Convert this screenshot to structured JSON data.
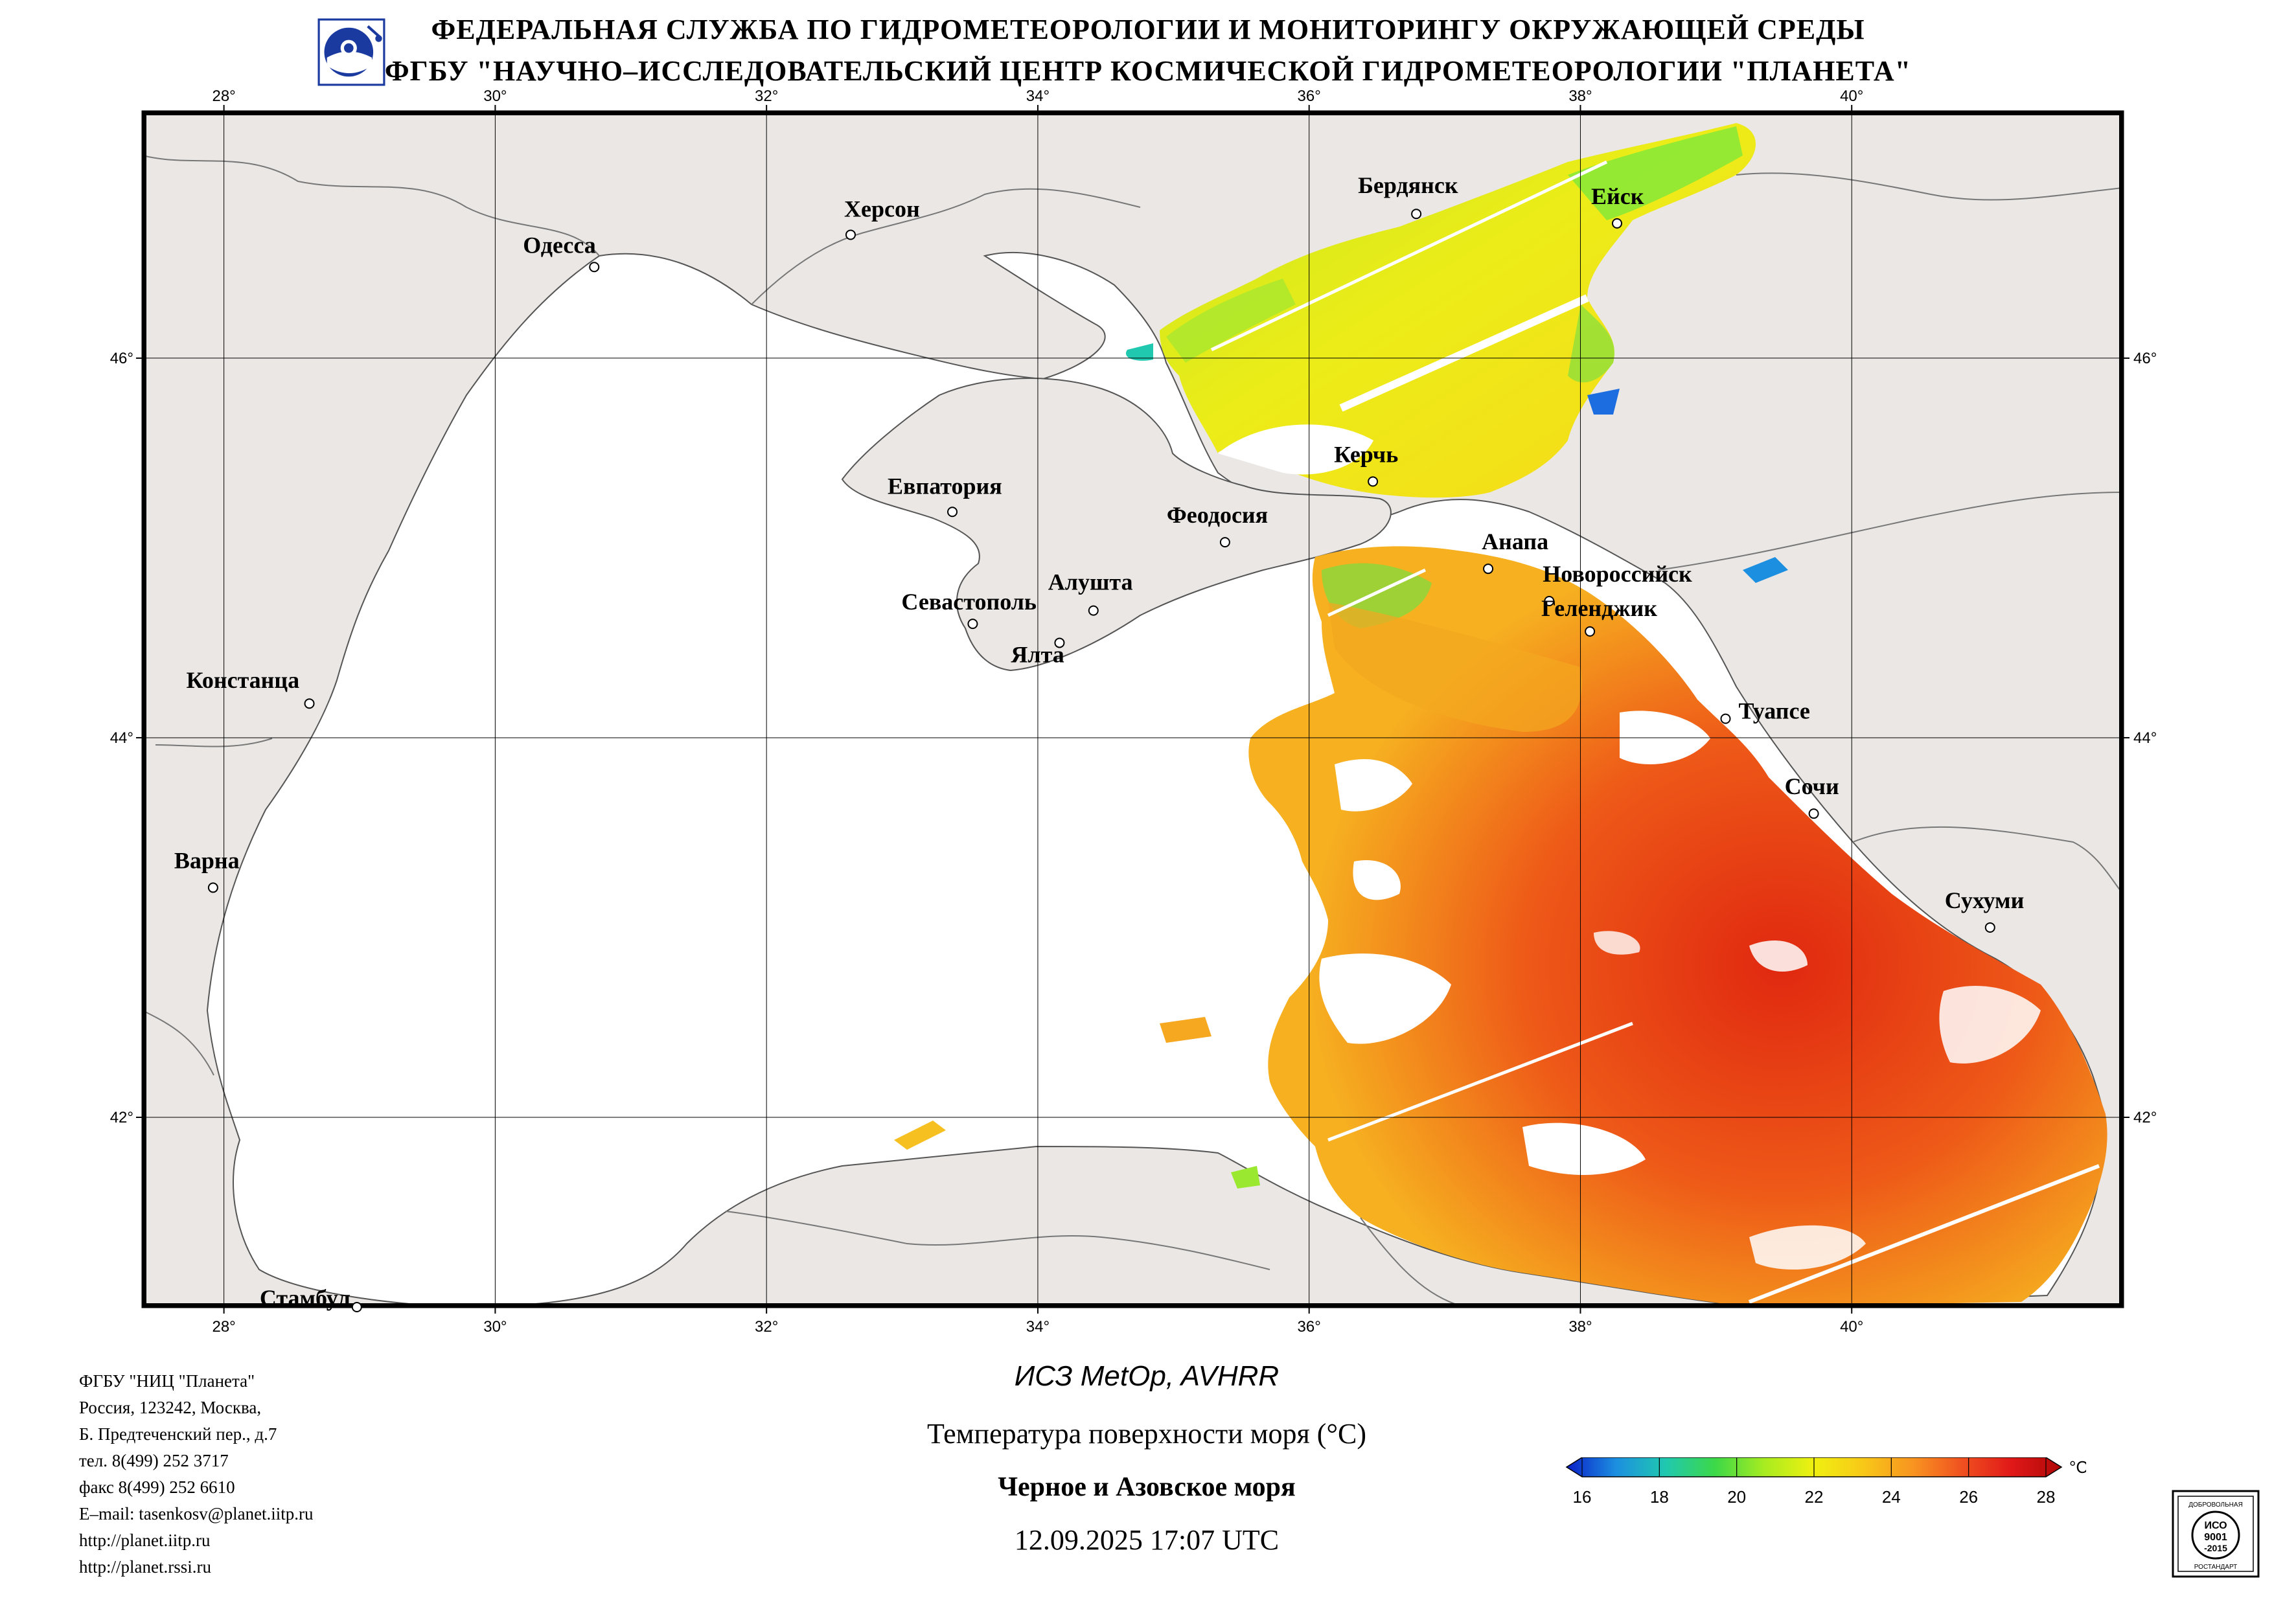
{
  "header": {
    "line1": "ФЕДЕРАЛЬНАЯ СЛУЖБА ПО ГИДРОМЕТЕОРОЛОГИИ И МОНИТОРИНГУ ОКРУЖАЮЩЕЙ СРЕДЫ",
    "line2": "ФГБУ \"НАУЧНО–ИССЛЕДОВАТЕЛЬСКИЙ ЦЕНТР КОСМИЧЕСКОЙ ГИДРОМЕТЕОРОЛОГИИ \"ПЛАНЕТА\""
  },
  "map": {
    "lon_ticks": [
      "28°",
      "30°",
      "32°",
      "34°",
      "36°",
      "38°",
      "40°"
    ],
    "lat_ticks": [
      "46°",
      "44°",
      "42°"
    ],
    "lon_values": [
      28,
      30,
      32,
      34,
      36,
      38,
      40
    ],
    "lat_values": [
      46,
      44,
      42
    ],
    "lon_range": [
      27.4,
      42.0
    ],
    "lat_range": [
      41.0,
      47.3
    ],
    "colors": {
      "land": "#ebe7e4",
      "water_nodata": "#ffffff",
      "border": "#000000"
    },
    "cities": [
      {
        "name": "Одесса",
        "lon": 30.73,
        "lat": 46.48
      },
      {
        "name": "Херсон",
        "lon": 32.62,
        "lat": 46.65
      },
      {
        "name": "Бердянск",
        "lon": 36.79,
        "lat": 46.76
      },
      {
        "name": "Ейск",
        "lon": 38.27,
        "lat": 46.71
      },
      {
        "name": "Евпатория",
        "lon": 33.37,
        "lat": 45.19
      },
      {
        "name": "Керчь",
        "lon": 36.47,
        "lat": 45.35
      },
      {
        "name": "Феодосия",
        "lon": 35.38,
        "lat": 45.03
      },
      {
        "name": "Анапа",
        "lon": 37.32,
        "lat": 44.89
      },
      {
        "name": "Новороссийск",
        "lon": 37.77,
        "lat": 44.72
      },
      {
        "name": "Геленджик",
        "lon": 38.07,
        "lat": 44.56
      },
      {
        "name": "Севастополь",
        "lon": 33.52,
        "lat": 44.6
      },
      {
        "name": "Алушта",
        "lon": 34.41,
        "lat": 44.67
      },
      {
        "name": "Ялта",
        "lon": 34.16,
        "lat": 44.5
      },
      {
        "name": "Констанца",
        "lon": 28.63,
        "lat": 44.18
      },
      {
        "name": "Туапсе",
        "lon": 39.07,
        "lat": 44.1
      },
      {
        "name": "Сочи",
        "lon": 39.72,
        "lat": 43.6
      },
      {
        "name": "Варна",
        "lon": 27.92,
        "lat": 43.21
      },
      {
        "name": "Сухуми",
        "lon": 41.02,
        "lat": 43.0
      },
      {
        "name": "Стамбул",
        "lon": 28.98,
        "lat": 41.0
      }
    ]
  },
  "contact": {
    "org": "ФГБУ \"НИЦ \"Планета\"",
    "addr1": "Россия, 123242, Москва,",
    "addr2": "Б. Предтеченский пер., д.7",
    "tel": "тел. 8(499) 252 3717",
    "fax": "факс 8(499) 252 6610",
    "email": "E–mail: tasenkosv@planet.iitp.ru",
    "url1": "http://planet.iitp.ru",
    "url2": "http://planet.rssi.ru"
  },
  "info": {
    "satellite": "ИСЗ MetOp, AVHRR",
    "product": "Температура поверхности моря (°C)",
    "region": "Черное и Азовское моря",
    "datetime": "12.09.2025 17:07 UTC"
  },
  "colorbar": {
    "unit": "°C",
    "tick_labels": [
      "16",
      "18",
      "20",
      "22",
      "24",
      "26",
      "28"
    ],
    "min": 16,
    "max": 28,
    "stops": [
      "#0a1fc8",
      "#1c8fe0",
      "#20c8b0",
      "#3cd848",
      "#a8ec20",
      "#f0f010",
      "#f8c818",
      "#f89420",
      "#f05020",
      "#e01818",
      "#b00808"
    ]
  },
  "certificate": {
    "top": "ДОБРОВОЛЬНАЯ",
    "std": "ИСО",
    "num": "9001",
    "year": "-2015",
    "bottom": "РОСТАНДАРТ"
  }
}
